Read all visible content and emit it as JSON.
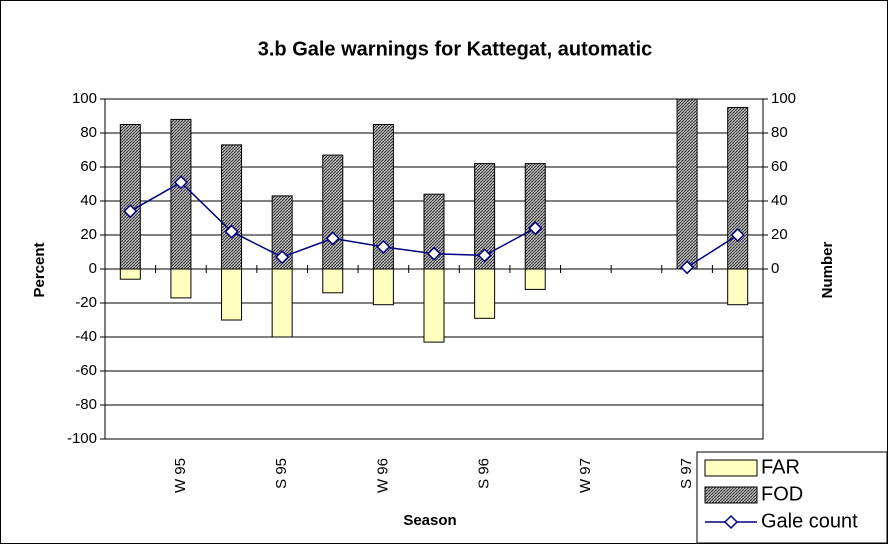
{
  "chart_data": {
    "type": "bar",
    "title": "3.b Gale warnings for Kattegat, automatic",
    "x_label": "Season",
    "y_label": "Percent",
    "y2_label": "Number",
    "categories": [
      null,
      "W 95",
      null,
      "S 95",
      null,
      "W 96",
      null,
      "S 96",
      null,
      "W 97",
      null,
      "S 97",
      null
    ],
    "series": [
      {
        "name": "FAR",
        "color": "#ffffc0",
        "type": "bar",
        "values": [
          -6,
          -17,
          -30,
          -40,
          -14,
          -21,
          -43,
          -29,
          -12,
          null,
          null,
          0,
          -21
        ]
      },
      {
        "name": "FOD",
        "color": "#808080",
        "type": "bar",
        "values": [
          85,
          88,
          73,
          43,
          67,
          85,
          44,
          62,
          62,
          null,
          null,
          100,
          95
        ]
      },
      {
        "name": "Gale count",
        "color": "#000080",
        "type": "line",
        "axis": "y2",
        "values": [
          34,
          51,
          22,
          7,
          18,
          13,
          9,
          8,
          24,
          null,
          null,
          1,
          20
        ]
      }
    ],
    "ylim": [
      -100,
      100
    ],
    "yticks": [
      -100,
      -80,
      -60,
      -40,
      -20,
      0,
      20,
      40,
      60,
      80,
      100
    ],
    "y2lim": [
      -100,
      100
    ],
    "y2ticks": [
      0,
      20,
      40,
      60,
      80,
      100
    ],
    "grid": true,
    "legend": "bottom-right"
  }
}
